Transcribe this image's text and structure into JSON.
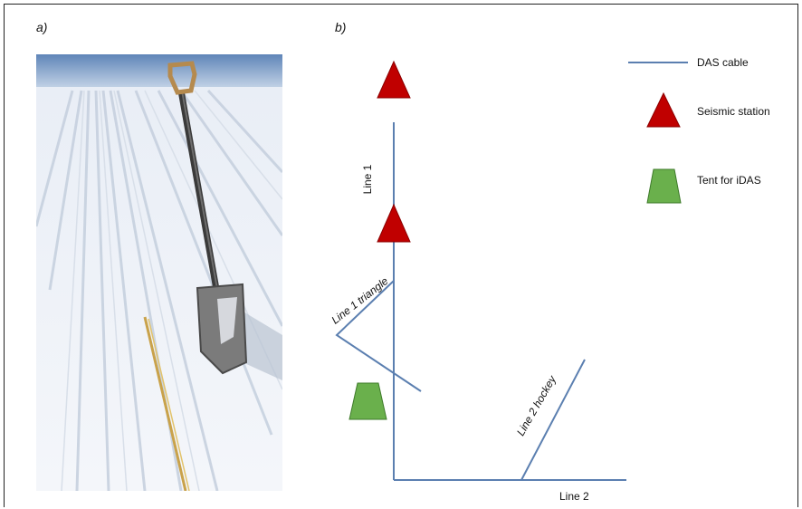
{
  "panels": {
    "a_label": "a)",
    "b_label": "b)"
  },
  "legend": {
    "das_cable": "DAS cable",
    "seismic_station": "Seismic station",
    "tent": "Tent for iDAS"
  },
  "diagram": {
    "line1": "Line 1",
    "line1_triangle": "Line 1 triangle",
    "line2": "Line 2",
    "line2_hockey": "Line 2 hockey"
  },
  "colors": {
    "cable": "#5b7fb0",
    "station": "#c00000",
    "tent": "#6ab04c"
  }
}
